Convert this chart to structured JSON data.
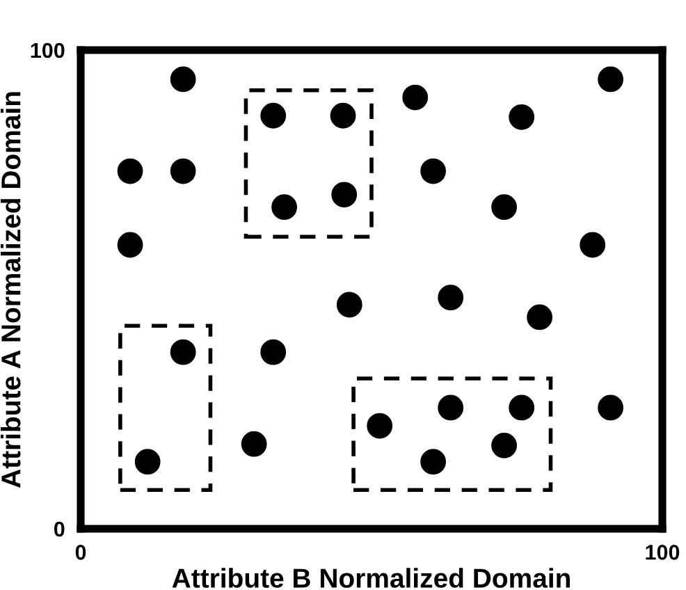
{
  "chart_data": {
    "type": "scatter",
    "xlabel": "Attribute B Normalized Domain",
    "ylabel": "Attribute A Normalized Domain",
    "x": [
      17.6,
      91.1,
      33.1,
      45.1,
      57.5,
      75.8,
      8.5,
      17.6,
      60.6,
      35.0,
      45.3,
      72.8,
      8.5,
      88.0,
      46.2,
      63.6,
      78.9,
      17.6,
      33.1,
      63.6,
      75.8,
      91.1,
      51.4,
      72.8,
      29.8,
      11.5,
      60.6
    ],
    "series": [
      {
        "color": "#000000",
        "values": [
          93.9,
          93.9,
          86.3,
          86.3,
          90.1,
          86.0,
          74.7,
          74.7,
          74.7,
          67.2,
          69.8,
          67.2,
          59.3,
          59.3,
          46.8,
          48.3,
          44.2,
          36.9,
          36.9,
          25.3,
          25.3,
          25.3,
          21.5,
          17.4,
          17.7,
          14.0,
          14.0
        ]
      }
    ],
    "xlim": [
      0,
      100
    ],
    "ylim": [
      0,
      100
    ],
    "xticks": [
      0,
      100
    ],
    "yticks": [
      0,
      100
    ],
    "marker": "circle",
    "legend": false
  }
}
